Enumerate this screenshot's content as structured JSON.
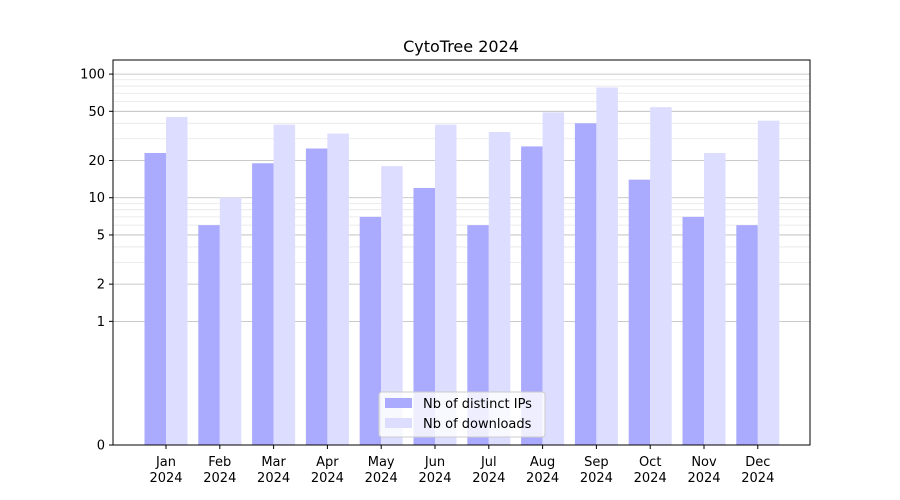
{
  "chart_data": {
    "type": "bar",
    "title": "CytoTree 2024",
    "xlabel": "",
    "ylabel": "",
    "y_scale": "symlog",
    "ylim": [
      0,
      130
    ],
    "y_ticks": [
      0,
      1,
      2,
      5,
      10,
      20,
      50,
      100
    ],
    "y_tick_labels": [
      "0",
      "1",
      "2",
      "5",
      "10",
      "20",
      "50",
      "100"
    ],
    "grid": true,
    "legend_position": "bottom-center",
    "categories": [
      "Jan\n2024",
      "Feb\n2024",
      "Mar\n2024",
      "Apr\n2024",
      "May\n2024",
      "Jun\n2024",
      "Jul\n2024",
      "Aug\n2024",
      "Sep\n2024",
      "Oct\n2024",
      "Nov\n2024",
      "Dec\n2024"
    ],
    "series": [
      {
        "name": "Nb of distinct IPs",
        "color": "#aaaaff",
        "values": [
          23,
          6,
          19,
          25,
          7,
          12,
          6,
          26,
          40,
          14,
          7,
          6
        ]
      },
      {
        "name": "Nb of downloads",
        "color": "#ddddff",
        "values": [
          45,
          10,
          39,
          33,
          18,
          39,
          34,
          49,
          78,
          54,
          23,
          42
        ]
      }
    ]
  }
}
